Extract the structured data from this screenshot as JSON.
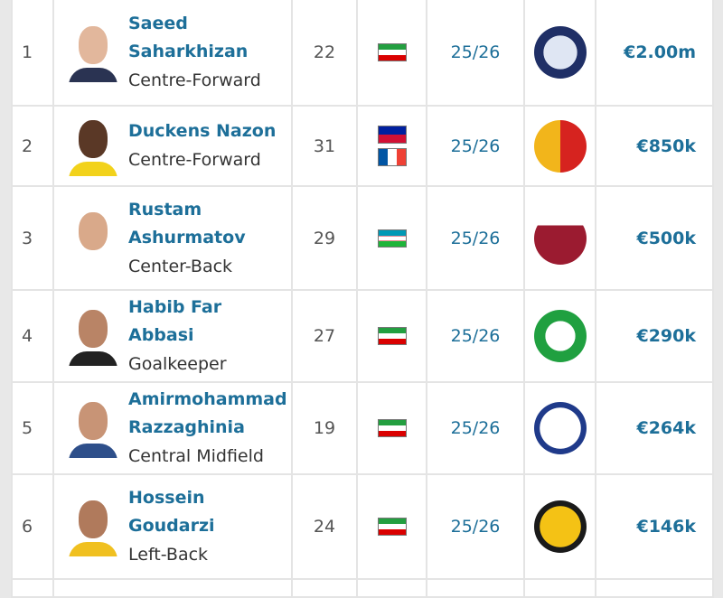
{
  "rows": [
    {
      "rank": "1",
      "name": "Saeed Saharkhizan",
      "position": "Centre-Forward",
      "age": "22",
      "nationalities": [
        "Iran"
      ],
      "season": "25/26",
      "club_logo": "orenburg-crest",
      "value": "€2.00m",
      "skin": "#e2b79c",
      "kit": "#2a3352"
    },
    {
      "rank": "2",
      "name": "Duckens Nazon",
      "position": "Centre-Forward",
      "age": "31",
      "nationalities": [
        "Haiti",
        "France"
      ],
      "season": "25/26",
      "club_logo": "kayserispor-crest",
      "value": "€850k",
      "skin": "#5a3826",
      "kit": "#f2d21b"
    },
    {
      "rank": "3",
      "name": "Rustam Ashurmatov",
      "position": "Center-Back",
      "age": "29",
      "nationalities": [
        "Uzbekistan"
      ],
      "season": "25/26",
      "club_logo": "rubin-kazan-crest",
      "value": "€500k",
      "skin": "#d9a98a",
      "kit": "#ffffff"
    },
    {
      "rank": "4",
      "name": "Habib Far Abbasi",
      "position": "Goalkeeper",
      "age": "27",
      "nationalities": [
        "Iran"
      ],
      "season": "25/26",
      "club_logo": "zob-ahan-crest",
      "value": "€290k",
      "skin": "#b98466",
      "kit": "#222222"
    },
    {
      "rank": "5",
      "name": "Amirmohammad Razzaghinia",
      "position": "Central Midfield",
      "age": "19",
      "nationalities": [
        "Iran"
      ],
      "season": "25/26",
      "club_logo": "esteghlal-crest",
      "value": "€264k",
      "skin": "#c89476",
      "kit": "#2e4f8a"
    },
    {
      "rank": "6",
      "name": "Hossein Goudarzi",
      "position": "Left-Back",
      "age": "24",
      "nationalities": [
        "Iran"
      ],
      "season": "25/26",
      "club_logo": "sepahan-crest",
      "value": "€146k",
      "skin": "#b07a5c",
      "kit": "#f0c020"
    }
  ],
  "colors": {
    "link": "#1d6f99",
    "border": "#e4e4e4"
  }
}
